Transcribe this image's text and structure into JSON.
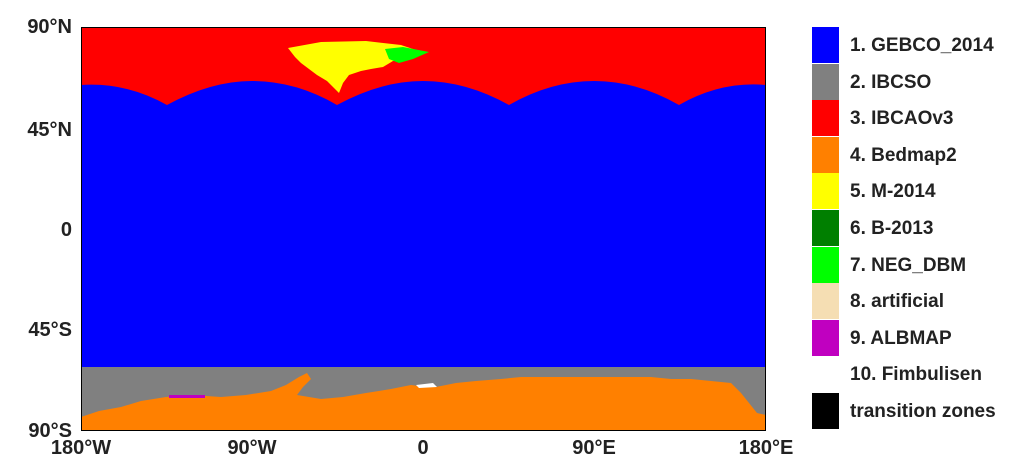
{
  "map": {
    "y_ticks": [
      "90°N",
      "45°N",
      "0",
      "45°S",
      "90°S"
    ],
    "x_ticks": [
      "180°W",
      "90°W",
      "0",
      "90°E",
      "180°E"
    ]
  },
  "legend": {
    "items": [
      {
        "label": "1. GEBCO_2014",
        "color": "#0000ff"
      },
      {
        "label": "2. IBCSO",
        "color": "#808080"
      },
      {
        "label": "3. IBCAOv3",
        "color": "#ff0000"
      },
      {
        "label": "4. Bedmap2",
        "color": "#ff8000"
      },
      {
        "label": "5. M-2014",
        "color": "#ffff00"
      },
      {
        "label": "6. B-2013",
        "color": "#007f00"
      },
      {
        "label": "7. NEG_DBM",
        "color": "#00ff00"
      },
      {
        "label": "8. artificial",
        "color": "#f5deb3"
      },
      {
        "label": "9. ALBMAP",
        "color": "#c000c0"
      },
      {
        "label": "10. Fimbulisen",
        "color": "#ffffff"
      },
      {
        "label": "transition zones",
        "color": "#000000"
      }
    ]
  }
}
